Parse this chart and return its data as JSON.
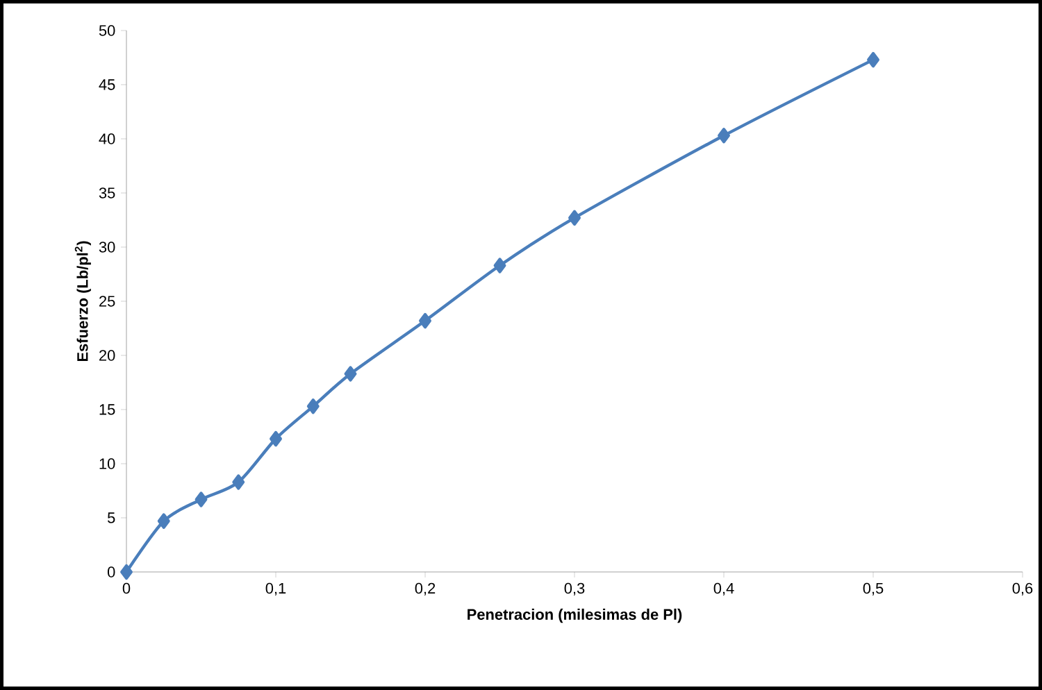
{
  "chart_data": {
    "type": "line",
    "xlabel": "Penetracion (milesimas de Pl)",
    "ylabel": "Esfuerzo (Lb/pl$^{2}$)",
    "x": [
      0,
      0.025,
      0.05,
      0.075,
      0.1,
      0.125,
      0.15,
      0.2,
      0.25,
      0.3,
      0.4,
      0.5
    ],
    "series": [
      {
        "color": "#4a7ebb",
        "values": [
          0,
          4.7,
          6.7,
          8.3,
          12.3,
          15.3,
          18.3,
          23.2,
          28.3,
          32.7,
          40.3,
          47.3
        ]
      }
    ],
    "xlim": [
      0,
      0.6
    ],
    "xticks": [
      0,
      {
        "value": 0.1,
        "label": "0,1"
      },
      {
        "value": 0.2,
        "label": "0,2"
      },
      {
        "value": 0.3,
        "label": "0,3"
      },
      {
        "value": 0.4,
        "label": "0,4"
      },
      {
        "value": 0.5,
        "label": "0,5"
      },
      {
        "value": 0.6,
        "label": "0,6"
      }
    ],
    "ylim": [
      0,
      50
    ],
    "yticks": [
      0,
      5,
      10,
      15,
      20,
      25,
      30,
      35,
      40,
      45,
      50
    ],
    "grid": false,
    "marker": "diamond",
    "line_style": "solid"
  }
}
